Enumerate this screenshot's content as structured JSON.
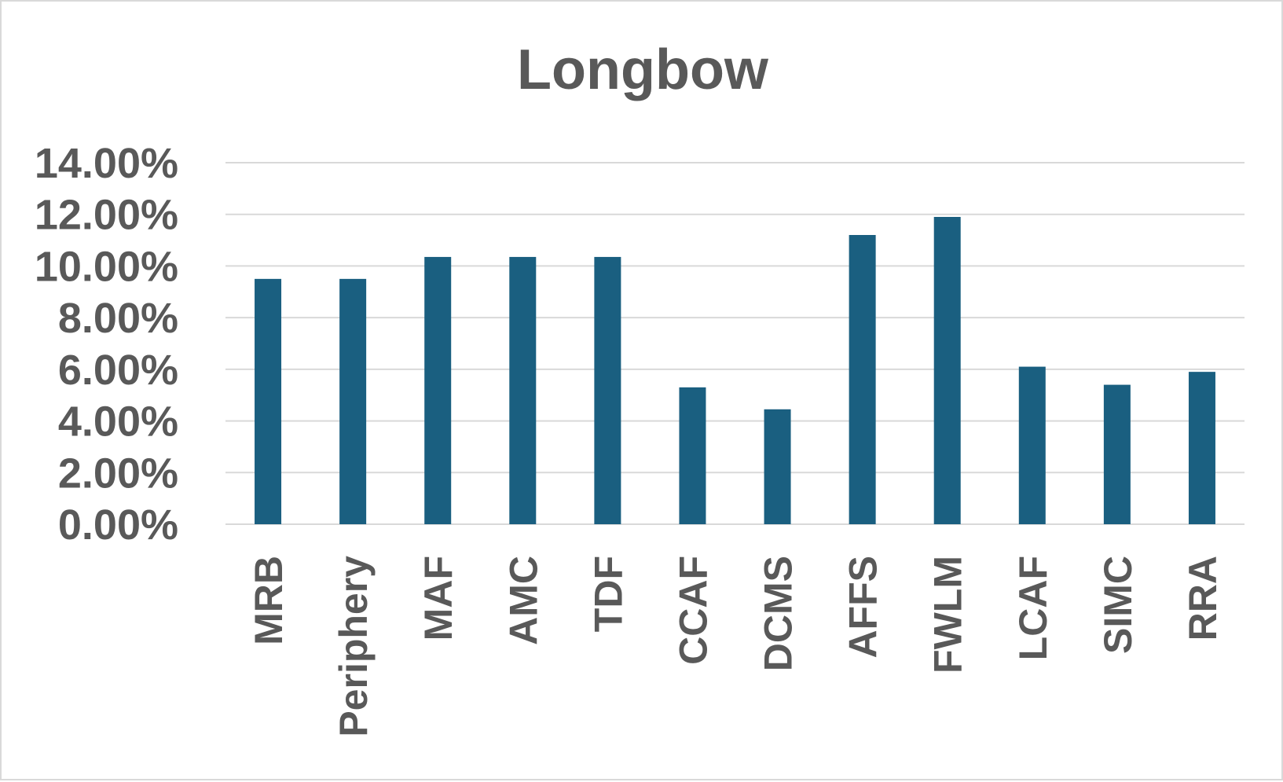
{
  "chart_data": {
    "type": "bar",
    "title": "Longbow",
    "xlabel": "",
    "ylabel": "",
    "categories": [
      "MRB",
      "Periphery",
      "MAF",
      "AMC",
      "TDF",
      "CCAF",
      "DCMS",
      "AFFS",
      "FWLM",
      "LCAF",
      "SIMC",
      "RRA"
    ],
    "series": [
      {
        "values": [
          9.5,
          9.5,
          10.35,
          10.35,
          10.35,
          5.3,
          4.45,
          11.2,
          11.9,
          6.1,
          5.4,
          5.9
        ],
        "color": "#1a5f80"
      }
    ],
    "ylim": [
      0,
      14
    ],
    "yticks": [
      0,
      2,
      4,
      6,
      8,
      10,
      12,
      14
    ],
    "ytick_labels": [
      "0.00%",
      "2.00%",
      "4.00%",
      "6.00%",
      "8.00%",
      "10.00%",
      "12.00%",
      "14.00%"
    ],
    "grid": true,
    "legend": "none",
    "colors": {
      "bar": "#1a5f80",
      "gridline": "#d9d9d9",
      "text": "#595959",
      "border": "#d9d9d9"
    }
  }
}
